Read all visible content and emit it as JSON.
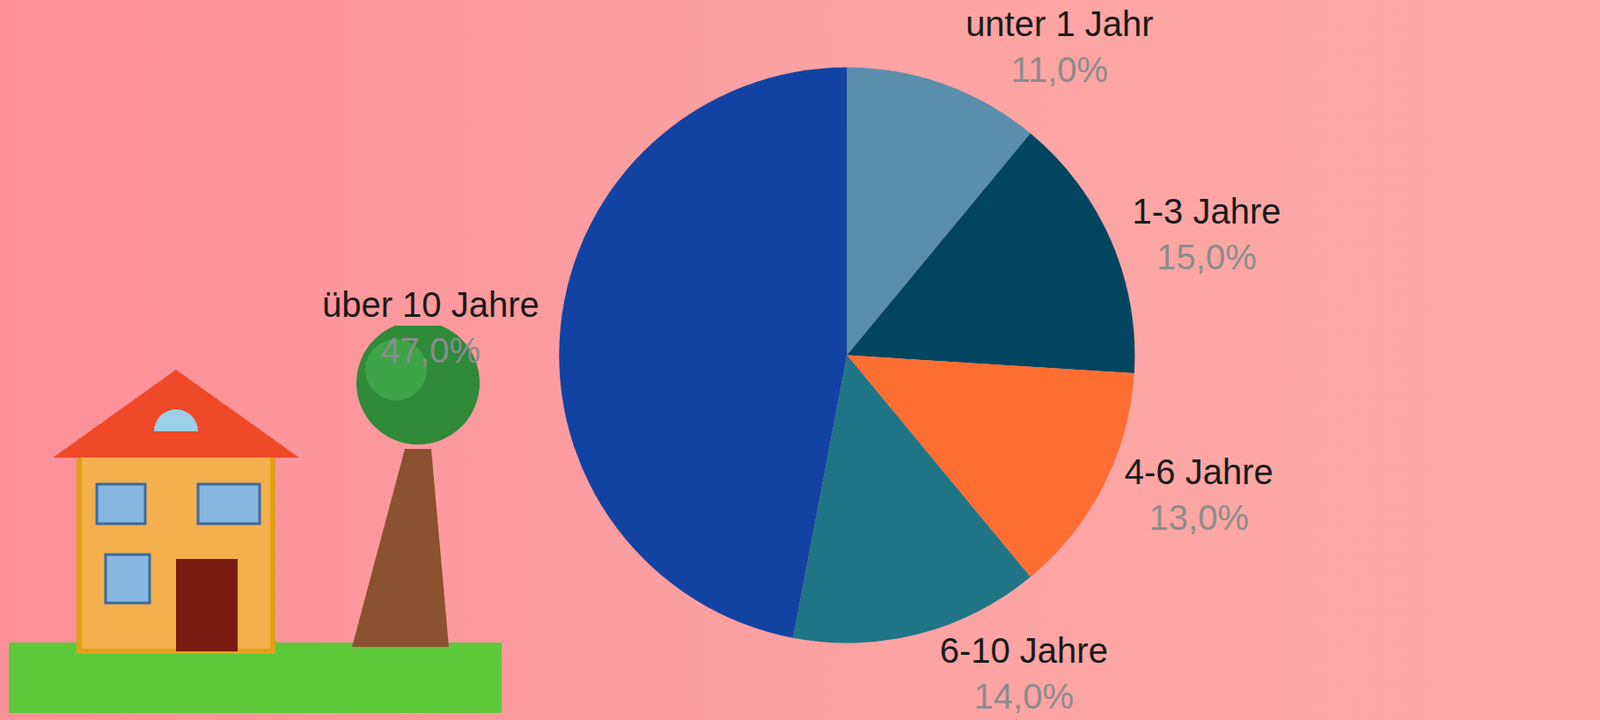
{
  "chart_data": {
    "type": "pie",
    "categories": [
      "unter 1 Jahr",
      "1-3 Jahre",
      "4-6 Jahre",
      "6-10 Jahre",
      "über 10 Jahre"
    ],
    "values": [
      11,
      15,
      13,
      14,
      47
    ],
    "value_labels": [
      "11,0%",
      "15,0%",
      "13,0%",
      "14,0%",
      "47,0%"
    ],
    "colors": [
      "#5a8fac",
      "#024560",
      "#fe6e32",
      "#1f7585",
      "#1243a2"
    ],
    "data_labels": true
  }
}
